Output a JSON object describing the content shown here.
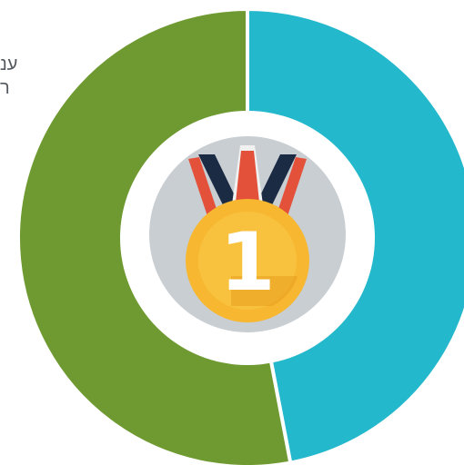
{
  "side_text": [
    "ענ",
    "ר"
  ],
  "colors": {
    "teal": "#24b8cc",
    "green": "#6f9a31",
    "center": "#ffffff",
    "separator": "#ffffff",
    "medal_disc": "#c9ced2",
    "ribbon_dark": "#1b2b44",
    "ribbon_red": "#e4513a",
    "ribbon_white": "#f1f1f1",
    "coin_outer": "#f7b731",
    "coin_inner": "#f8c23f",
    "coin_shadow": "#e8a11d",
    "badge_text": "#ffffff"
  },
  "chart_data": {
    "type": "pie",
    "title": "",
    "slices": [
      {
        "value": 47,
        "color": "#24b8cc"
      },
      {
        "value": 53,
        "color": "#6f9a31"
      }
    ],
    "center_icon": "first-place-medal-icon",
    "center_label": "1"
  }
}
